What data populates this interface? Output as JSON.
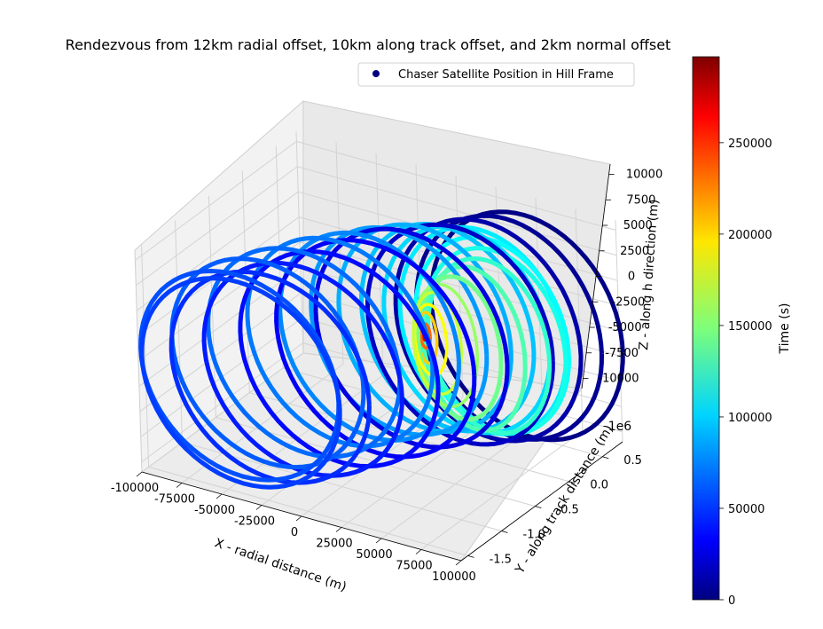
{
  "chart_data": {
    "type": "scatter",
    "title": "Rendezvous from 12km radial offset, 10km along track offset, and 2km normal offset",
    "legend": {
      "label": "Chaser Satellite Position in Hill Frame",
      "marker_color": "#00007f",
      "placement": "top-right"
    },
    "axes": {
      "x": {
        "label": "X - radial distance (m)",
        "range": [
          -100000,
          100000
        ],
        "ticks": [
          "-100000",
          "-75000",
          "-50000",
          "-25000",
          "0",
          "25000",
          "50000",
          "75000",
          "100000"
        ]
      },
      "y": {
        "label": "Y - along track distance (m)",
        "offset_text": "1e6",
        "range": [
          -1.6,
          0.8
        ],
        "ticks": [
          "-1.5",
          "-1.0",
          "-0.5",
          "0.0",
          "0.5"
        ]
      },
      "z": {
        "label": "Z - along h direction (m)",
        "range": [
          -11000,
          11000
        ],
        "ticks": [
          "-10000",
          "-7500",
          "-5000",
          "-2500",
          "0",
          "2500",
          "5000",
          "7500",
          "10000"
        ]
      }
    },
    "colorbar": {
      "label": "Time (s)",
      "colormap": "jet",
      "range": [
        0,
        297000
      ],
      "ticks": [
        "0",
        "50000",
        "100000",
        "150000",
        "200000",
        "250000"
      ]
    },
    "series": [
      {
        "rings": [
          {
            "x_center": 55000,
            "y_center": 0.5,
            "radius_x": 60000,
            "radius_z": 11000,
            "t": 2000
          },
          {
            "x_center": 48000,
            "y_center": 0.4,
            "radius_x": 58000,
            "radius_z": 10800,
            "t": 6000
          },
          {
            "x_center": 40000,
            "y_center": 0.28,
            "radius_x": 58000,
            "radius_z": 10700,
            "t": 12000
          },
          {
            "x_center": 30000,
            "y_center": 0.1,
            "radius_x": 58000,
            "radius_z": 10600,
            "t": 20000
          },
          {
            "x_center": 10000,
            "y_center": -0.15,
            "radius_x": 60000,
            "radius_z": 10500,
            "t": 28000
          },
          {
            "x_center": 0,
            "y_center": -0.45,
            "radius_x": 62000,
            "radius_z": 10400,
            "t": 35000
          },
          {
            "x_center": -10000,
            "y_center": -0.75,
            "radius_x": 62000,
            "radius_z": 10300,
            "t": 40000
          },
          {
            "x_center": -20000,
            "y_center": -1.05,
            "radius_x": 62000,
            "radius_z": 10200,
            "t": 45000
          },
          {
            "x_center": -30000,
            "y_center": -1.3,
            "radius_x": 62000,
            "radius_z": 10100,
            "t": 50000
          },
          {
            "x_center": -40000,
            "y_center": -1.5,
            "radius_x": 62000,
            "radius_z": 10000,
            "t": 55000
          },
          {
            "x_center": -45000,
            "y_center": -1.4,
            "radius_x": 62000,
            "radius_z": 10000,
            "t": 60000
          },
          {
            "x_center": -40000,
            "y_center": -1.1,
            "radius_x": 60000,
            "radius_z": 10000,
            "t": 64000
          },
          {
            "x_center": -30000,
            "y_center": -0.8,
            "radius_x": 60000,
            "radius_z": 10000,
            "t": 68000
          },
          {
            "x_center": -20000,
            "y_center": -0.5,
            "radius_x": 58000,
            "radius_z": 10000,
            "t": 72000
          },
          {
            "x_center": -10000,
            "y_center": -0.3,
            "radius_x": 56000,
            "radius_z": 10000,
            "t": 76000
          },
          {
            "x_center": 0,
            "y_center": -0.1,
            "radius_x": 55000,
            "radius_z": 10000,
            "t": 82000
          },
          {
            "x_center": 10000,
            "y_center": 0.05,
            "radius_x": 54000,
            "radius_z": 10000,
            "t": 88000
          },
          {
            "x_center": 20000,
            "y_center": 0.15,
            "radius_x": 54000,
            "radius_z": 10000,
            "t": 94000
          },
          {
            "x_center": 30000,
            "y_center": 0.2,
            "radius_x": 52000,
            "radius_z": 10000,
            "t": 100000
          },
          {
            "x_center": 38000,
            "y_center": 0.25,
            "radius_x": 52000,
            "radius_z": 10000,
            "t": 106000
          },
          {
            "x_center": 45000,
            "y_center": 0.22,
            "radius_x": 48000,
            "radius_z": 9500,
            "t": 112000
          },
          {
            "x_center": 50000,
            "y_center": 0.15,
            "radius_x": 44000,
            "radius_z": 9000,
            "t": 118000
          },
          {
            "x_center": 50000,
            "y_center": 0.05,
            "radius_x": 38000,
            "radius_z": 8500,
            "t": 126000
          },
          {
            "x_center": 45000,
            "y_center": -0.05,
            "radius_x": 32000,
            "radius_z": 8000,
            "t": 134000
          },
          {
            "x_center": 38000,
            "y_center": -0.1,
            "radius_x": 26000,
            "radius_z": 7000,
            "t": 144000
          },
          {
            "x_center": 30000,
            "y_center": -0.12,
            "radius_x": 20000,
            "radius_z": 6000,
            "t": 156000
          },
          {
            "x_center": 25000,
            "y_center": -0.12,
            "radius_x": 15000,
            "radius_z": 5000,
            "t": 170000
          },
          {
            "x_center": 20000,
            "y_center": -0.1,
            "radius_x": 10000,
            "radius_z": 3500,
            "t": 185000
          },
          {
            "x_center": 17000,
            "y_center": -0.08,
            "radius_x": 6000,
            "radius_z": 2500,
            "t": 200000
          },
          {
            "x_center": 15000,
            "y_center": -0.06,
            "radius_x": 3000,
            "radius_z": 1200,
            "t": 230000
          },
          {
            "x_center": 14000,
            "y_center": -0.05,
            "radius_x": 800,
            "radius_z": 500,
            "t": 270000
          }
        ]
      }
    ]
  }
}
